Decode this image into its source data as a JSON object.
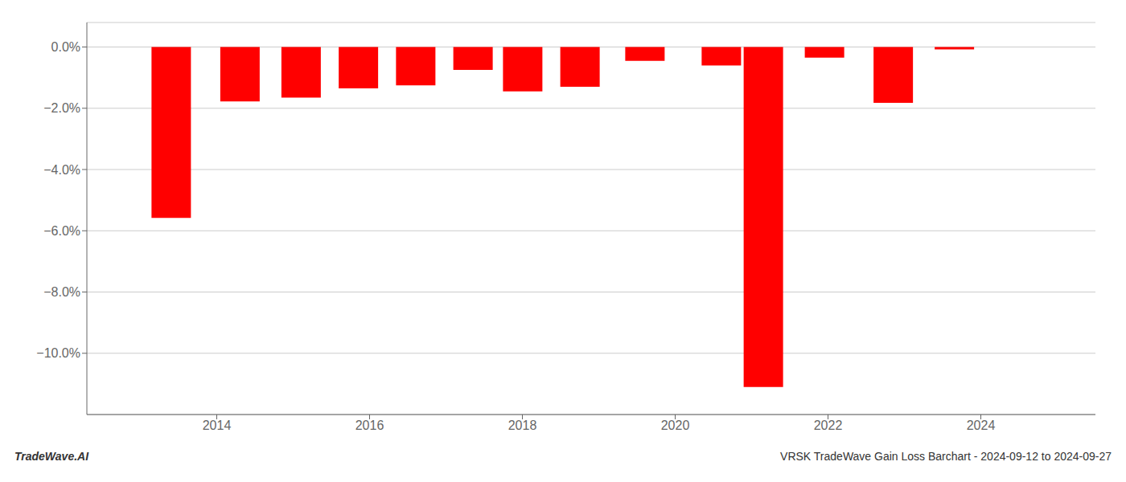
{
  "chart_data": {
    "type": "bar",
    "title": "VRSK TradeWave Gain Loss Barchart - 2024-09-12 to 2024-09-27",
    "annotations": [
      "TradeWave.AI"
    ],
    "x": [
      2013.4,
      2014.3,
      2015.1,
      2015.85,
      2016.6,
      2017.35,
      2018.0,
      2018.75,
      2019.6,
      2020.6,
      2021.15,
      2021.95,
      2022.85,
      2023.65
    ],
    "values": [
      -5.58,
      -1.78,
      -1.65,
      -1.35,
      -1.25,
      -0.75,
      -1.45,
      -1.3,
      -0.45,
      -0.6,
      -11.1,
      -0.35,
      -1.82,
      -0.08
    ],
    "color": "#ff0000",
    "xlim": [
      2012.3,
      2025.5
    ],
    "xticks": [
      2014,
      2016,
      2018,
      2020,
      2022,
      2024
    ],
    "ylim": [
      -12.0,
      0.8
    ],
    "yticks": [
      {
        "value": 0.0,
        "label": "0.0%"
      },
      {
        "value": -2.0,
        "label": "−2.0%"
      },
      {
        "value": -4.0,
        "label": "−4.0%"
      },
      {
        "value": -6.0,
        "label": "−6.0%"
      },
      {
        "value": -8.0,
        "label": "−8.0%"
      },
      {
        "value": -10.0,
        "label": "−10.0%"
      }
    ],
    "grid": true
  }
}
